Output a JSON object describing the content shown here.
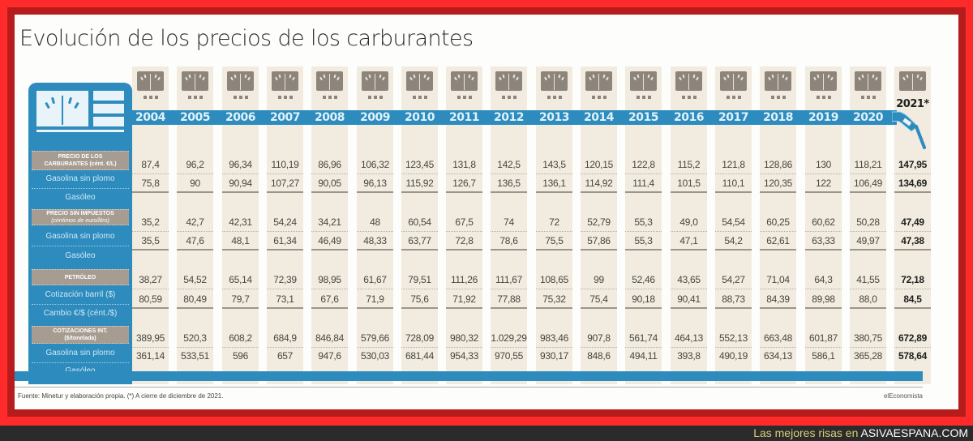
{
  "title": "Evolución de los precios de los carburantes",
  "years": [
    "2004",
    "2005",
    "2006",
    "2007",
    "2008",
    "2009",
    "2010",
    "2011",
    "2012",
    "2013",
    "2014",
    "2015",
    "2016",
    "2017",
    "2018",
    "2019",
    "2020"
  ],
  "year_last": "2021*",
  "sections": [
    {
      "header_line1": "PRECIO DE LOS",
      "header_line2": "CARBURANTES (cént. €/L)"
    },
    {
      "header_line1": "PRECIO SIN IMPUESTOS",
      "header_line2": "(céntimos de euro/litro)"
    },
    {
      "header_line1": "PETRÓLEO",
      "header_line2": ""
    },
    {
      "header_line1": "COTIZACIONES INT.",
      "header_line2": "($/tonelada)"
    }
  ],
  "row_labels": [
    "Gasolina sin plomo",
    "Gasóleo",
    "Gasolina sin plomo",
    "Gasóleo",
    "Cotización barril ($)",
    "Cambio €/$ (cént./$)",
    "Gasolina sin plomo",
    "Gasóleo"
  ],
  "rows": [
    [
      "87,4",
      "96,2",
      "96,34",
      "110,19",
      "86,96",
      "106,32",
      "123,45",
      "131,8",
      "142,5",
      "143,5",
      "120,15",
      "122,8",
      "115,2",
      "121,8",
      "128,86",
      "130",
      "118,21",
      "147,95"
    ],
    [
      "75,8",
      "90",
      "90,94",
      "107,27",
      "90,05",
      "96,13",
      "115,92",
      "126,7",
      "136,5",
      "136,1",
      "114,92",
      "111,4",
      "101,5",
      "110,1",
      "120,35",
      "122",
      "106,49",
      "134,69"
    ],
    [
      "35,2",
      "42,7",
      "42,31",
      "54,24",
      "34,21",
      "48",
      "60,54",
      "67,5",
      "74",
      "72",
      "52,79",
      "55,3",
      "49,0",
      "54,54",
      "60,25",
      "60,62",
      "50,28",
      "47,49"
    ],
    [
      "35,5",
      "47,6",
      "48,1",
      "61,34",
      "46,49",
      "48,33",
      "63,77",
      "72,8",
      "78,6",
      "75,5",
      "57,86",
      "55,3",
      "47,1",
      "54,2",
      "62,61",
      "63,33",
      "49,97",
      "47,38"
    ],
    [
      "38,27",
      "54,52",
      "65,14",
      "72,39",
      "98,95",
      "61,67",
      "79,51",
      "111,26",
      "111,67",
      "108,65",
      "99",
      "52,46",
      "43,65",
      "54,27",
      "71,04",
      "64,3",
      "41,55",
      "72,18"
    ],
    [
      "80,59",
      "80,49",
      "79,7",
      "73,1",
      "67,6",
      "71,9",
      "75,6",
      "71,92",
      "77,88",
      "75,32",
      "75,4",
      "90,18",
      "90,41",
      "88,73",
      "84,39",
      "89,98",
      "88,0",
      "84,5"
    ],
    [
      "389,95",
      "520,3",
      "608,2",
      "684,9",
      "846,84",
      "579,66",
      "728,09",
      "980,32",
      "1.029,29",
      "983,46",
      "907,8",
      "561,74",
      "464,13",
      "552,13",
      "663,48",
      "601,87",
      "380,75",
      "672,89"
    ],
    [
      "361,14",
      "533,51",
      "596",
      "657",
      "947,6",
      "530,03",
      "681,44",
      "954,33",
      "970,55",
      "930,17",
      "848,6",
      "494,11",
      "393,8",
      "490,19",
      "634,13",
      "586,1",
      "365,28",
      "578,64"
    ]
  ],
  "source": "Fuente: Minetur y elaboración propia. (*) A cierre de diciembre de 2021.",
  "brand": "elEconomista",
  "footer": {
    "prefix": "Las mejores risas en ",
    "site": "ASIVAESPANA.COM"
  },
  "colors": {
    "accent_blue": "#2e8bbd",
    "column_bg": "#f1ecdf",
    "section_grey": "#a69c91",
    "frame_red": "#ff2b2b"
  },
  "chart_data": {
    "type": "table",
    "title": "Evolución de los precios de los carburantes",
    "columns": [
      "2004",
      "2005",
      "2006",
      "2007",
      "2008",
      "2009",
      "2010",
      "2011",
      "2012",
      "2013",
      "2014",
      "2015",
      "2016",
      "2017",
      "2018",
      "2019",
      "2020",
      "2021*"
    ],
    "series": [
      {
        "group": "Precio de los carburantes (cént. €/L)",
        "name": "Gasolina sin plomo",
        "values": [
          87.4,
          96.2,
          96.34,
          110.19,
          86.96,
          106.32,
          123.45,
          131.8,
          142.5,
          143.5,
          120.15,
          122.8,
          115.2,
          121.8,
          128.86,
          130,
          118.21,
          147.95
        ]
      },
      {
        "group": "Precio de los carburantes (cént. €/L)",
        "name": "Gasóleo",
        "values": [
          75.8,
          90,
          90.94,
          107.27,
          90.05,
          96.13,
          115.92,
          126.7,
          136.5,
          136.1,
          114.92,
          111.4,
          101.5,
          110.1,
          120.35,
          122,
          106.49,
          134.69
        ]
      },
      {
        "group": "Precio sin impuestos (céntimos de euro/litro)",
        "name": "Gasolina sin plomo",
        "values": [
          35.2,
          42.7,
          42.31,
          54.24,
          34.21,
          48,
          60.54,
          67.5,
          74,
          72,
          52.79,
          55.3,
          49.0,
          54.54,
          60.25,
          60.62,
          50.28,
          47.49
        ]
      },
      {
        "group": "Precio sin impuestos (céntimos de euro/litro)",
        "name": "Gasóleo",
        "values": [
          35.5,
          47.6,
          48.1,
          61.34,
          46.49,
          48.33,
          63.77,
          72.8,
          78.6,
          75.5,
          57.86,
          55.3,
          47.1,
          54.2,
          62.61,
          63.33,
          49.97,
          47.38
        ]
      },
      {
        "group": "Petróleo",
        "name": "Cotización barril ($)",
        "values": [
          38.27,
          54.52,
          65.14,
          72.39,
          98.95,
          61.67,
          79.51,
          111.26,
          111.67,
          108.65,
          99,
          52.46,
          43.65,
          54.27,
          71.04,
          64.3,
          41.55,
          72.18
        ]
      },
      {
        "group": "Petróleo",
        "name": "Cambio €/$ (cént./$)",
        "values": [
          80.59,
          80.49,
          79.7,
          73.1,
          67.6,
          71.9,
          75.6,
          71.92,
          77.88,
          75.32,
          75.4,
          90.18,
          90.41,
          88.73,
          84.39,
          89.98,
          88.0,
          84.5
        ]
      },
      {
        "group": "Cotizaciones int. ($/tonelada)",
        "name": "Gasolina sin plomo",
        "values": [
          389.95,
          520.3,
          608.2,
          684.9,
          846.84,
          579.66,
          728.09,
          980.32,
          1029.29,
          983.46,
          907.8,
          561.74,
          464.13,
          552.13,
          663.48,
          601.87,
          380.75,
          672.89
        ]
      },
      {
        "group": "Cotizaciones int. ($/tonelada)",
        "name": "Gasóleo",
        "values": [
          361.14,
          533.51,
          596,
          657,
          947.6,
          530.03,
          681.44,
          954.33,
          970.55,
          930.17,
          848.6,
          494.11,
          393.8,
          490.19,
          634.13,
          586.1,
          365.28,
          578.64
        ]
      }
    ],
    "notes": "(*) A cierre de diciembre de 2021."
  }
}
